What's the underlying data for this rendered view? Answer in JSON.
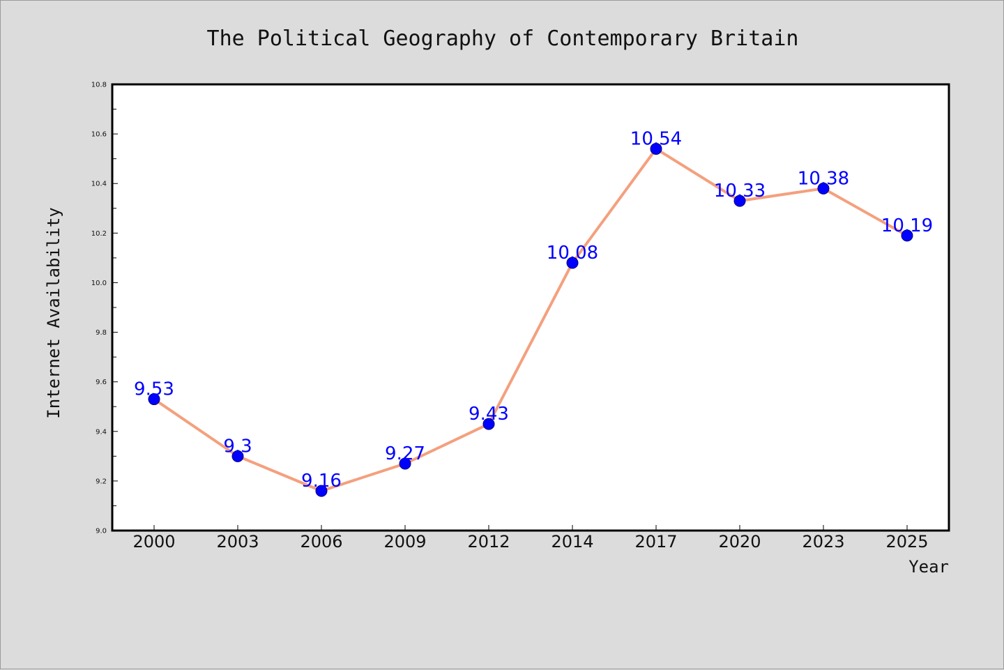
{
  "colors": {
    "page_background": "#dcdcdc",
    "plot_background": "#ffffff",
    "line": "#f4a07e",
    "marker": "#0000ff",
    "data_label": "#0000ff",
    "axis": "#000000"
  },
  "chart_data": {
    "type": "line",
    "title": "The Political Geography of Contemporary Britain",
    "xlabel": "Year",
    "ylabel": "Internet Availability",
    "categories": [
      "2000",
      "2003",
      "2006",
      "2009",
      "2012",
      "2014",
      "2017",
      "2020",
      "2023",
      "2025"
    ],
    "series": [
      {
        "values": [
          9.53,
          9.3,
          9.16,
          9.27,
          9.43,
          10.08,
          10.54,
          10.33,
          10.38,
          10.19
        ],
        "labels": [
          "9.53",
          "9.3",
          "9.16",
          "9.27",
          "9.43",
          "10.08",
          "10.54",
          "10.33",
          "10.38",
          "10.19"
        ]
      }
    ],
    "ylim": [
      9.0,
      10.8
    ],
    "yticks": [
      "9.0",
      "9.2",
      "9.4",
      "9.6",
      "9.8",
      "10.0",
      "10.2",
      "10.4",
      "10.6",
      "10.8"
    ],
    "grid": false,
    "legend": "none",
    "marker": "circle",
    "data_labels": true
  }
}
